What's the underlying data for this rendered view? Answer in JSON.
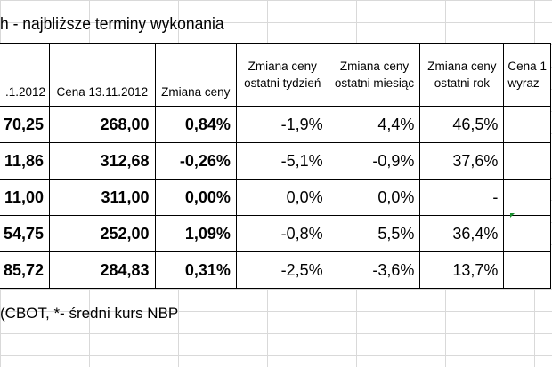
{
  "title": "h - najbliższe terminy wykonania",
  "table": {
    "headers": [
      {
        "line1": ".1.2012",
        "line2": ""
      },
      {
        "line1": "Cena 13.11.2012",
        "line2": ""
      },
      {
        "line1": "Zmiana ceny",
        "line2": ""
      },
      {
        "line1": "Zmiana ceny",
        "line2": "ostatni tydzień"
      },
      {
        "line1": "Zmiana ceny",
        "line2": "ostatni miesiąc"
      },
      {
        "line1": "Zmiana ceny",
        "line2": "ostatni rok"
      },
      {
        "line1": "Cena 1",
        "line2": "wyraz"
      }
    ],
    "rows": [
      {
        "c0": "70,25",
        "c1": "268,00",
        "c2": "0,84%",
        "c3": "-1,9%",
        "c4": "4,4%",
        "c5": "46,5%",
        "c6": ""
      },
      {
        "c0": "11,86",
        "c1": "312,68",
        "c2": "-0,26%",
        "c3": "-5,1%",
        "c4": "-0,9%",
        "c5": "37,6%",
        "c6": ""
      },
      {
        "c0": "11,00",
        "c1": "311,00",
        "c2": "0,00%",
        "c3": "0,0%",
        "c4": "0,0%",
        "c5": "-",
        "c6": ""
      },
      {
        "c0": "54,75",
        "c1": "252,00",
        "c2": "1,09%",
        "c3": "-0,8%",
        "c4": "5,5%",
        "c5": "36,4%",
        "c6": ""
      },
      {
        "c0": "85,72",
        "c1": "284,83",
        "c2": "0,31%",
        "c3": "-2,5%",
        "c4": "-3,6%",
        "c5": "13,7%",
        "c6": ""
      }
    ]
  },
  "footnote": "(CBOT, *- średni kurs NBP",
  "colors": {
    "grid": "#d9d9d9",
    "marker": "#1a8f2e"
  }
}
